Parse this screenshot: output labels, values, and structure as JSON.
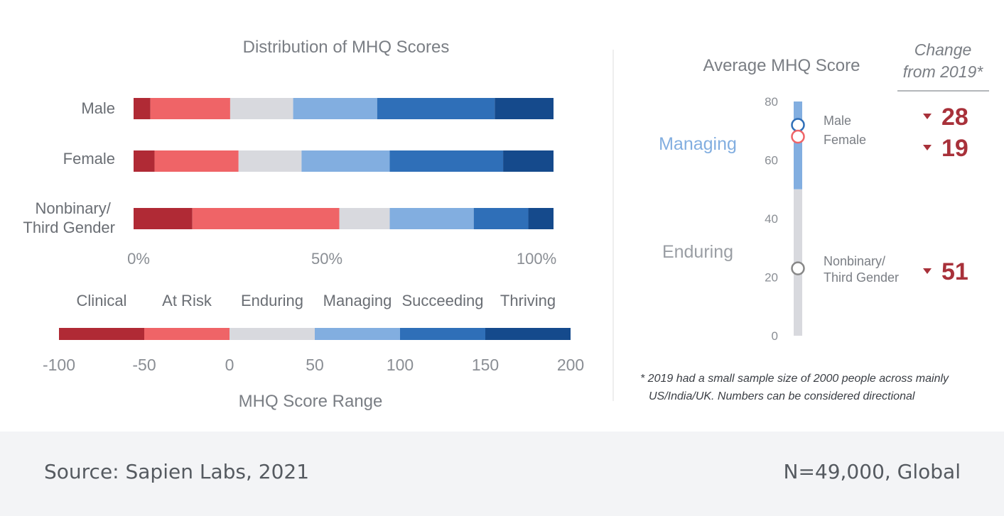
{
  "distribution": {
    "title": "Distribution of MHQ Scores",
    "axis_ticks": [
      "0%",
      "50%",
      "100%"
    ]
  },
  "legend": {
    "categories": [
      "Clinical",
      "At Risk",
      "Enduring",
      "Managing",
      "Succeeding",
      "Thriving"
    ],
    "colors": [
      "#b02a35",
      "#ef6467",
      "#d8d9de",
      "#82aee0",
      "#2f6fb8",
      "#154a8c"
    ],
    "boundaries": [
      -100,
      -50,
      0,
      50,
      100,
      150,
      200
    ],
    "tick_labels": [
      "-100",
      "-50",
      "0",
      "50",
      "100",
      "150",
      "200"
    ],
    "axis_label": "MHQ Score Range"
  },
  "average": {
    "title": "Average MHQ Score",
    "change_header_line1": "Change",
    "change_header_line2": "from 2019*",
    "zone_managing": "Managing",
    "zone_enduring": "Enduring",
    "scale_ticks": [
      "80",
      "60",
      "40",
      "20",
      "0"
    ],
    "footnote_line1": "* 2019 had a small sample size of 2000 people across mainly",
    "footnote_line2": "US/India/UK.  Numbers can be considered directional"
  },
  "chart_data": [
    {
      "type": "bar",
      "stacked": true,
      "orientation": "horizontal",
      "title": "Distribution of MHQ Scores",
      "categories": [
        "Male",
        "Female",
        "Nonbinary/ Third Gender"
      ],
      "xlim": [
        0,
        100
      ],
      "xunit": "%",
      "series": [
        {
          "name": "Clinical",
          "values": [
            4,
            5,
            14
          ]
        },
        {
          "name": "At Risk",
          "values": [
            19,
            20,
            35
          ]
        },
        {
          "name": "Enduring",
          "values": [
            15,
            15,
            12
          ]
        },
        {
          "name": "Managing",
          "values": [
            20,
            21,
            20
          ]
        },
        {
          "name": "Succeeding",
          "values": [
            28,
            27,
            13
          ]
        },
        {
          "name": "Thriving",
          "values": [
            14,
            12,
            6
          ]
        }
      ]
    },
    {
      "type": "scatter",
      "title": "Average MHQ Score",
      "ylim": [
        0,
        80
      ],
      "points": [
        {
          "label_line1": "Male",
          "label_line2": "",
          "value": 72,
          "color": "#2f6fb8",
          "change": "28"
        },
        {
          "label_line1": "Female",
          "label_line2": "",
          "value": 68,
          "color": "#ef6467",
          "change": "19"
        },
        {
          "label_line1": "Nonbinary/",
          "label_line2": "Third Gender",
          "value": 23,
          "color": "#888888",
          "change": "51"
        }
      ],
      "change_direction": "down",
      "change_color": "#a8313a"
    }
  ],
  "footer": {
    "source": "Source: Sapien Labs, 2021",
    "sample": "N=49,000, Global"
  }
}
